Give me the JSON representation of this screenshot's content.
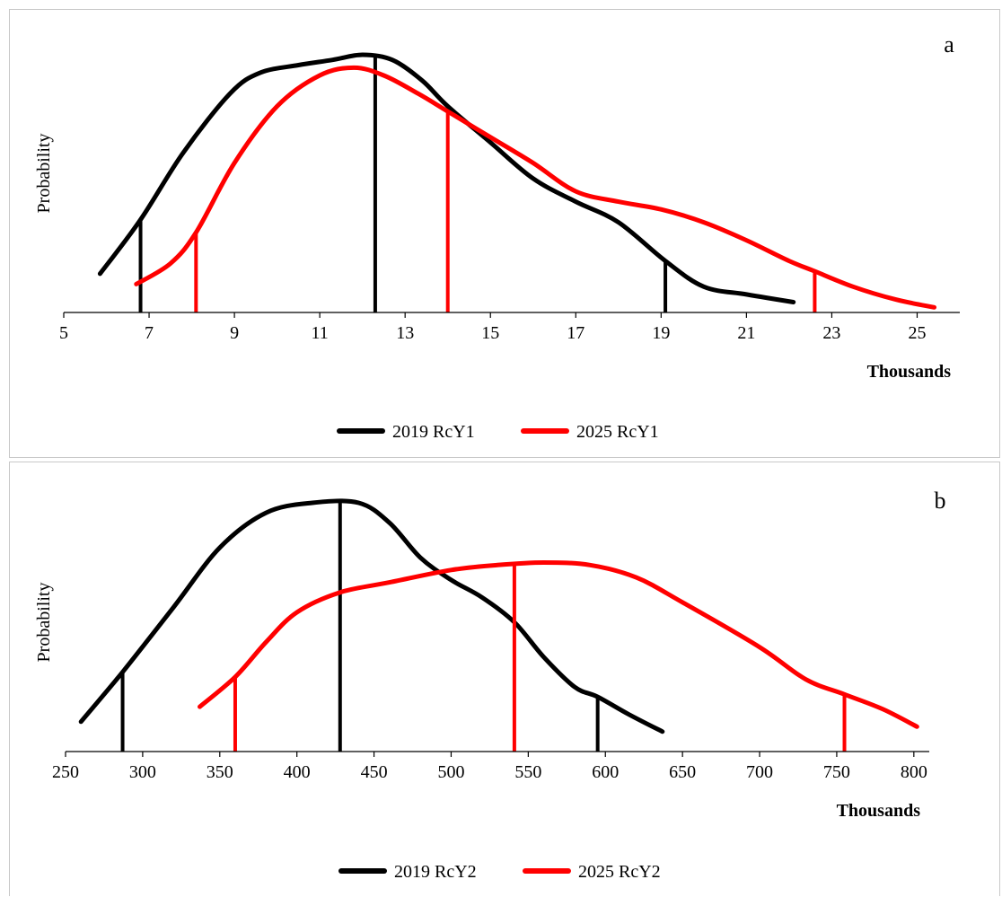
{
  "chart_data": [
    {
      "type": "line",
      "panel_label": "a",
      "xlabel": "Thousands",
      "ylabel": "Probability",
      "xlim": [
        5,
        26
      ],
      "ylim": [
        0,
        1
      ],
      "xticks": [
        5,
        7,
        9,
        11,
        13,
        15,
        17,
        19,
        21,
        23,
        25
      ],
      "legend_position": "bottom",
      "series": [
        {
          "name": "2019 RcY1",
          "color": "#000000",
          "points": [
            [
              5.85,
              0.15
            ],
            [
              6.8,
              0.36
            ],
            [
              7.8,
              0.62
            ],
            [
              8.9,
              0.85
            ],
            [
              9.6,
              0.93
            ],
            [
              10.5,
              0.96
            ],
            [
              11.3,
              0.98
            ],
            [
              12.0,
              1.0
            ],
            [
              12.7,
              0.98
            ],
            [
              13.4,
              0.9
            ],
            [
              14.0,
              0.8
            ],
            [
              15.0,
              0.66
            ],
            [
              16.0,
              0.52
            ],
            [
              17.0,
              0.43
            ],
            [
              18.0,
              0.35
            ],
            [
              19.1,
              0.2
            ],
            [
              20.0,
              0.1
            ],
            [
              21.0,
              0.07
            ],
            [
              22.1,
              0.04
            ]
          ],
          "markers": [
            6.8,
            12.3,
            19.1
          ]
        },
        {
          "name": "2025 RcY1",
          "color": "#ff0000",
          "points": [
            [
              6.7,
              0.11
            ],
            [
              7.5,
              0.19
            ],
            [
              8.1,
              0.31
            ],
            [
              9.0,
              0.58
            ],
            [
              10.0,
              0.8
            ],
            [
              11.0,
              0.92
            ],
            [
              11.8,
              0.95
            ],
            [
              12.5,
              0.92
            ],
            [
              13.3,
              0.85
            ],
            [
              14.0,
              0.78
            ],
            [
              15.0,
              0.68
            ],
            [
              16.0,
              0.58
            ],
            [
              17.0,
              0.47
            ],
            [
              18.0,
              0.43
            ],
            [
              19.0,
              0.4
            ],
            [
              20.0,
              0.35
            ],
            [
              21.0,
              0.28
            ],
            [
              22.0,
              0.2
            ],
            [
              22.6,
              0.16
            ],
            [
              23.5,
              0.1
            ],
            [
              24.5,
              0.05
            ],
            [
              25.4,
              0.02
            ]
          ],
          "markers": [
            8.1,
            14.0,
            22.6
          ]
        }
      ]
    },
    {
      "type": "line",
      "panel_label": "b",
      "xlabel": "Thousands",
      "ylabel": "Probability",
      "xlim": [
        250,
        810
      ],
      "ylim": [
        0,
        1
      ],
      "xticks": [
        250,
        300,
        350,
        400,
        450,
        500,
        550,
        600,
        650,
        700,
        750,
        800
      ],
      "legend_position": "bottom",
      "series": [
        {
          "name": "2019 RcY2",
          "color": "#000000",
          "points": [
            [
              260,
              0.12
            ],
            [
              287,
              0.32
            ],
            [
              320,
              0.58
            ],
            [
              350,
              0.82
            ],
            [
              380,
              0.96
            ],
            [
              410,
              1.0
            ],
            [
              440,
              1.0
            ],
            [
              460,
              0.92
            ],
            [
              480,
              0.78
            ],
            [
              500,
              0.69
            ],
            [
              520,
              0.62
            ],
            [
              541,
              0.52
            ],
            [
              560,
              0.38
            ],
            [
              580,
              0.26
            ],
            [
              595,
              0.22
            ],
            [
              615,
              0.15
            ],
            [
              637,
              0.08
            ]
          ],
          "markers": [
            287,
            428,
            595
          ]
        },
        {
          "name": "2025 RcY2",
          "color": "#ff0000",
          "points": [
            [
              337,
              0.18
            ],
            [
              360,
              0.3
            ],
            [
              380,
              0.44
            ],
            [
              400,
              0.56
            ],
            [
              428,
              0.64
            ],
            [
              460,
              0.68
            ],
            [
              500,
              0.73
            ],
            [
              530,
              0.75
            ],
            [
              560,
              0.76
            ],
            [
              590,
              0.75
            ],
            [
              620,
              0.7
            ],
            [
              650,
              0.6
            ],
            [
              700,
              0.42
            ],
            [
              730,
              0.29
            ],
            [
              755,
              0.23
            ],
            [
              780,
              0.17
            ],
            [
              802,
              0.1
            ]
          ],
          "markers": [
            360,
            541,
            755
          ]
        }
      ]
    }
  ]
}
